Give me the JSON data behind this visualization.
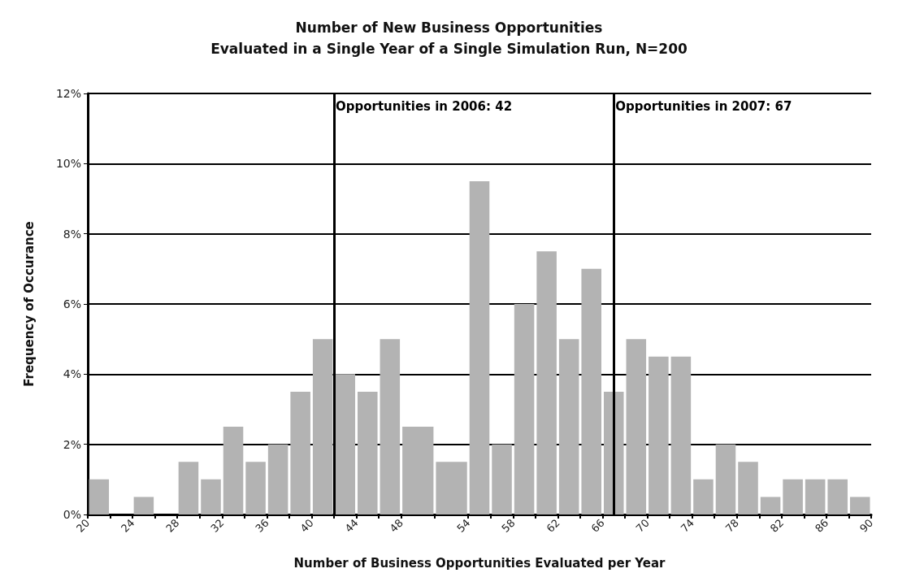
{
  "chart_data": {
    "type": "histogram",
    "title": "Number of New Business Opportunities\nEvaluated in a Single Year of a Single Simulation Run, N=200",
    "xlabel": "Number of Business Opportunities Evaluated per Year",
    "ylabel": "Frequency of Occurance",
    "bins": [
      20,
      22,
      24,
      26,
      28,
      30,
      32,
      34,
      36,
      38,
      40,
      42,
      44,
      46,
      48,
      51,
      54,
      56,
      58,
      60,
      62,
      64,
      66,
      68,
      70,
      72,
      74,
      76,
      78,
      80,
      82,
      84,
      86,
      88,
      90
    ],
    "values": [
      1,
      0,
      0.5,
      0,
      1.5,
      1,
      2.5,
      1.5,
      2,
      3.5,
      5,
      4,
      3.5,
      5,
      2.5,
      1.5,
      9.5,
      2,
      6,
      7.5,
      5,
      7,
      3.5,
      5,
      4.5,
      4.5,
      1,
      2,
      1.5,
      0.5,
      1,
      1,
      1,
      0.5
    ],
    "color": "#b3b3b3",
    "xlim": [
      20,
      90
    ],
    "xticks": [
      20,
      24,
      28,
      32,
      36,
      40,
      44,
      48,
      54,
      58,
      62,
      66,
      70,
      74,
      78,
      82,
      86,
      90
    ],
    "ylim": [
      0,
      12
    ],
    "yticks": [
      {
        "value": 0,
        "label": "0%"
      },
      {
        "value": 2,
        "label": "2%"
      },
      {
        "value": 4,
        "label": "4%"
      },
      {
        "value": 6,
        "label": "6%"
      },
      {
        "value": 8,
        "label": "8%"
      },
      {
        "value": 10,
        "label": "10%"
      },
      {
        "value": 12,
        "label": "12%"
      }
    ],
    "grid": "y",
    "ref_lines": [
      {
        "axis": "x",
        "value": 42,
        "label": "Opportunities in 2006: 42",
        "color": "#000000"
      },
      {
        "axis": "x",
        "value": 67,
        "label": "Opportunities in 2007: 67",
        "color": "#000000"
      }
    ]
  }
}
